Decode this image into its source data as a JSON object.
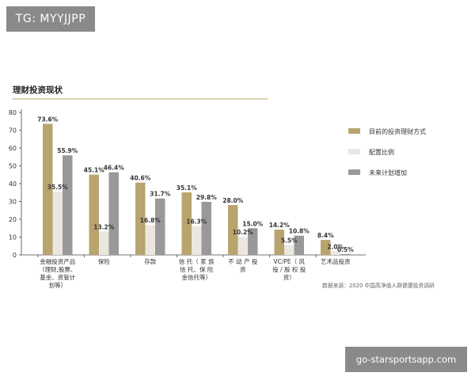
{
  "watermark_top": "TG: MYYJJPP",
  "watermark_bottom": "go-starsportsapp.com",
  "source_note": "数据来源：2020 中国高净值人群健康投资调研",
  "colors": {
    "rule": "#c2b285",
    "axis": "#444444"
  },
  "chart_data": {
    "type": "bar",
    "title": "理财投资现状",
    "xlabel": "",
    "ylabel": "",
    "ylim": [
      0,
      80
    ],
    "yticks": [
      0,
      10,
      20,
      30,
      40,
      50,
      60,
      70,
      80
    ],
    "grid": false,
    "legend_position": "right",
    "categories": [
      [
        "金融投资产品",
        "（理财,股票、",
        "基金、资管计",
        "划等）"
      ],
      [
        "保险"
      ],
      [
        "存款"
      ],
      [
        "信 托（ 家 族",
        "信 托、保 险",
        "金信托等）"
      ],
      [
        "不 动 产 投",
        "资"
      ],
      [
        "VC/PE（ 风",
        "投 / 股 权 投",
        "资）"
      ],
      [
        "艺术品投资"
      ]
    ],
    "series": [
      {
        "name": "目前的投资理财方式",
        "color": "#b8a46e",
        "values": [
          73.6,
          45.1,
          40.6,
          35.1,
          28.0,
          14.2,
          8.4
        ],
        "labels": [
          "73.6%",
          "45.1%",
          "40.6%",
          "35.1%",
          "28.0%",
          "14.2%",
          "8.4%"
        ]
      },
      {
        "name": "配置比例",
        "color": "#ebe7e0",
        "values": [
          35.5,
          13.2,
          16.8,
          16.3,
          10.2,
          5.5,
          2.0
        ],
        "labels": [
          "35.5%",
          "13.2%",
          "16.8%",
          "16.3%",
          "10.2%",
          "5.5%",
          "2.0%"
        ]
      },
      {
        "name": "未来计划增加",
        "color": "#999999",
        "values": [
          55.9,
          46.4,
          31.7,
          29.8,
          15.0,
          10.8,
          0.5
        ],
        "labels": [
          "55.9%",
          "46.4%",
          "31.7%",
          "29.8%",
          "15.0%",
          "10.8%",
          "0.5%"
        ]
      }
    ]
  }
}
